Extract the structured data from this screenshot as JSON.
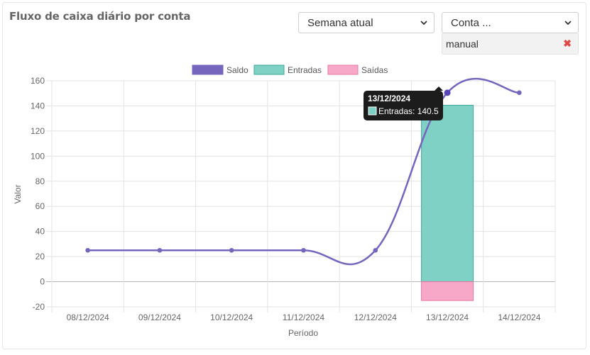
{
  "header": {
    "title": "Fluxo de caixa diário por conta",
    "period_select": {
      "value": "Semana atual"
    },
    "account_select": {
      "value": "Conta ..."
    },
    "selected_account": {
      "label": "manual",
      "remove": "✖"
    }
  },
  "colors": {
    "saldo": "#7565bd",
    "entradas_fill": "#7fd1c6",
    "entradas_border": "#3aa898",
    "saidas_fill": "#f7a8c8",
    "saidas_border": "#e9789f"
  },
  "tooltip": {
    "title": "13/12/2024",
    "body": "Entradas: 140.5"
  },
  "chart_data": {
    "type": "bar",
    "categories": [
      "08/12/2024",
      "09/12/2024",
      "10/12/2024",
      "11/12/2024",
      "12/12/2024",
      "13/12/2024",
      "14/12/2024"
    ],
    "series": [
      {
        "name": "Saldo",
        "type": "line",
        "values": [
          25,
          25,
          25,
          25,
          25,
          150.5,
          150.5
        ]
      },
      {
        "name": "Entradas",
        "type": "bar",
        "values": [
          0,
          0,
          0,
          0,
          0,
          140.5,
          0
        ]
      },
      {
        "name": "Saídas",
        "type": "bar",
        "values": [
          0,
          0,
          0,
          0,
          0,
          -15,
          0
        ]
      }
    ],
    "xlabel": "Período",
    "ylabel": "Valor",
    "ylim": [
      -20,
      160
    ],
    "yticks": [
      -20,
      0,
      20,
      40,
      60,
      80,
      100,
      120,
      140,
      160
    ],
    "grid": true,
    "legend_position": "top"
  }
}
